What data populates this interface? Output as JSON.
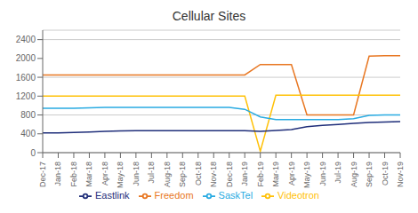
{
  "chart_data": {
    "type": "line",
    "title": "Cellular Sites",
    "categories": [
      "Dec-17",
      "Jan-18",
      "Feb-18",
      "Mar-18",
      "Apr-18",
      "May-18",
      "Jun-18",
      "Jul-18",
      "Aug-18",
      "Sep-18",
      "Oct-18",
      "Nov-18",
      "Dec-18",
      "Jan-19",
      "Feb-19",
      "Mar-19",
      "Apr-19",
      "May-19",
      "Jun-19",
      "Jul-19",
      "Aug-19",
      "Sep-19",
      "Oct-19",
      "Nov-19"
    ],
    "series": [
      {
        "name": "Freedom",
        "color": "#E87722",
        "values": [
          1650,
          1650,
          1650,
          1650,
          1650,
          1650,
          1650,
          1650,
          1650,
          1650,
          1650,
          1650,
          1650,
          1650,
          1870,
          1870,
          1870,
          800,
          800,
          800,
          800,
          2050,
          2060,
          2060
        ]
      },
      {
        "name": "Videotron",
        "color": "#FFC107",
        "values": [
          1200,
          1200,
          1200,
          1200,
          1200,
          1200,
          1200,
          1200,
          1200,
          1200,
          1200,
          1200,
          1200,
          1200,
          30,
          1220,
          1220,
          1220,
          1220,
          1220,
          1220,
          1220,
          1220,
          1220
        ]
      },
      {
        "name": "SaskTel",
        "color": "#29ABE2",
        "values": [
          940,
          940,
          940,
          950,
          960,
          960,
          960,
          960,
          960,
          960,
          960,
          960,
          960,
          920,
          760,
          700,
          700,
          700,
          700,
          700,
          720,
          790,
          800,
          800
        ]
      },
      {
        "name": "Eastlink",
        "color": "#1F2E7A",
        "values": [
          420,
          420,
          430,
          440,
          450,
          460,
          465,
          465,
          465,
          465,
          465,
          465,
          465,
          465,
          450,
          470,
          490,
          550,
          580,
          600,
          620,
          640,
          650,
          660
        ]
      }
    ],
    "ylim": [
      0,
      2600
    ],
    "yticks": [
      0,
      400,
      800,
      1200,
      1600,
      2000,
      2400
    ],
    "grid": true,
    "legend": "bottom"
  }
}
